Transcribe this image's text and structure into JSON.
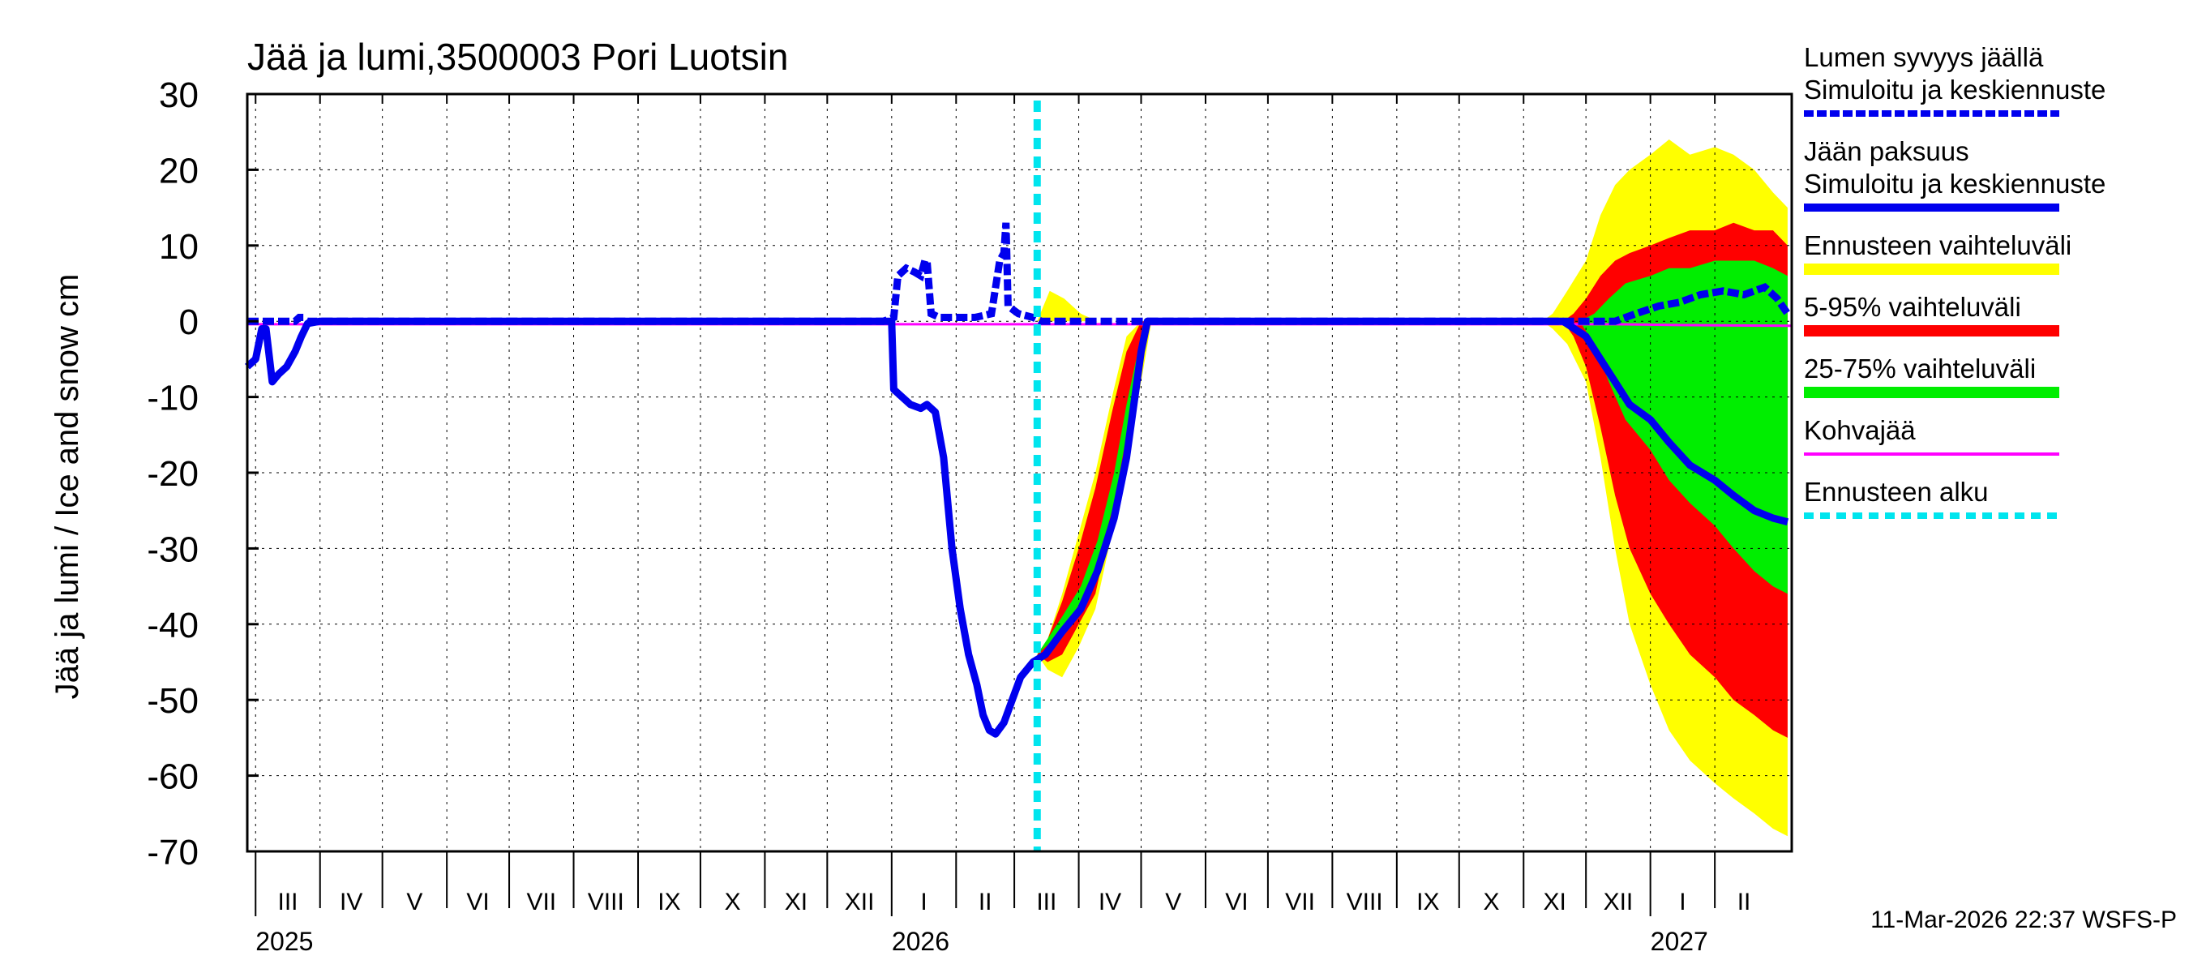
{
  "chart_data": {
    "type": "area",
    "title": "Jää ja lumi,3500003 Pori Luotsin",
    "ylabel": "Jää ja lumi / Ice and snow    cm",
    "xlabel": "",
    "ylim": [
      -70,
      30
    ],
    "yticks": [
      30,
      20,
      10,
      0,
      -10,
      -20,
      -30,
      -40,
      -50,
      -60,
      -70
    ],
    "xlim": [
      "2025-02-25",
      "2027-03-10"
    ],
    "grid": true,
    "legend_position": "right",
    "months": [
      {
        "label": "III",
        "start": "2025-03-01",
        "end": "2025-04-01"
      },
      {
        "label": "IV",
        "start": "2025-04-01",
        "end": "2025-05-01"
      },
      {
        "label": "V",
        "start": "2025-05-01",
        "end": "2025-06-01"
      },
      {
        "label": "VI",
        "start": "2025-06-01",
        "end": "2025-07-01"
      },
      {
        "label": "VII",
        "start": "2025-07-01",
        "end": "2025-08-01"
      },
      {
        "label": "VIII",
        "start": "2025-08-01",
        "end": "2025-09-01"
      },
      {
        "label": "IX",
        "start": "2025-09-01",
        "end": "2025-10-01"
      },
      {
        "label": "X",
        "start": "2025-10-01",
        "end": "2025-11-01"
      },
      {
        "label": "XI",
        "start": "2025-11-01",
        "end": "2025-12-01"
      },
      {
        "label": "XII",
        "start": "2025-12-01",
        "end": "2026-01-01"
      },
      {
        "label": "I",
        "start": "2026-01-01",
        "end": "2026-02-01"
      },
      {
        "label": "II",
        "start": "2026-02-01",
        "end": "2026-03-01"
      },
      {
        "label": "III",
        "start": "2026-03-01",
        "end": "2026-04-01"
      },
      {
        "label": "IV",
        "start": "2026-04-01",
        "end": "2026-05-01"
      },
      {
        "label": "V",
        "start": "2026-05-01",
        "end": "2026-06-01"
      },
      {
        "label": "VI",
        "start": "2026-06-01",
        "end": "2026-07-01"
      },
      {
        "label": "VII",
        "start": "2026-07-01",
        "end": "2026-08-01"
      },
      {
        "label": "VIII",
        "start": "2026-08-01",
        "end": "2026-09-01"
      },
      {
        "label": "IX",
        "start": "2026-09-01",
        "end": "2026-10-01"
      },
      {
        "label": "X",
        "start": "2026-10-01",
        "end": "2026-11-01"
      },
      {
        "label": "XI",
        "start": "2026-11-01",
        "end": "2026-12-01"
      },
      {
        "label": "XII",
        "start": "2026-12-01",
        "end": "2027-01-01"
      },
      {
        "label": "I",
        "start": "2027-01-01",
        "end": "2027-02-01"
      },
      {
        "label": "II",
        "start": "2027-02-01",
        "end": "2027-03-01"
      }
    ],
    "years": [
      {
        "label": "2025",
        "date": "2025-03-01"
      },
      {
        "label": "2026",
        "date": "2026-01-01"
      },
      {
        "label": "2027",
        "date": "2027-01-01"
      }
    ],
    "forecast_start": "2026-03-12",
    "legend": [
      {
        "key": "snow",
        "lines": [
          "Lumen syvyys jäällä",
          "Simuloitu ja keskiennuste"
        ],
        "color": "#0000ee",
        "style": "dashed"
      },
      {
        "key": "ice",
        "lines": [
          "Jään paksuus",
          "Simuloitu ja keskiennuste"
        ],
        "color": "#0000ee",
        "style": "solid"
      },
      {
        "key": "range",
        "lines": [
          "Ennusteen vaihteluväli"
        ],
        "color": "#ffff00",
        "style": "band"
      },
      {
        "key": "p5_95",
        "lines": [
          "5-95% vaihteluväli"
        ],
        "color": "#ff0000",
        "style": "band"
      },
      {
        "key": "p25_75",
        "lines": [
          "25-75% vaihteluväli"
        ],
        "color": "#00ee00",
        "style": "band"
      },
      {
        "key": "slush",
        "lines": [
          "Kohvajää"
        ],
        "color": "#ff00ff",
        "style": "thin"
      },
      {
        "key": "fstart",
        "lines": [
          "Ennusteen alku"
        ],
        "color": "#00e5ee",
        "style": "dotted"
      }
    ],
    "timestamp": "11-Mar-2026 22:37 WSFS-P",
    "series": {
      "ice_thickness": [
        [
          "2025-02-25",
          -6
        ],
        [
          "2025-03-01",
          -5
        ],
        [
          "2025-03-04",
          -1
        ],
        [
          "2025-03-06",
          -1
        ],
        [
          "2025-03-09",
          -8
        ],
        [
          "2025-03-12",
          -7
        ],
        [
          "2025-03-16",
          -6
        ],
        [
          "2025-03-20",
          -4
        ],
        [
          "2025-03-23",
          -2
        ],
        [
          "2025-03-26",
          -0.3
        ],
        [
          "2025-04-01",
          0
        ],
        [
          "2026-01-01",
          0
        ],
        [
          "2026-01-02",
          -9
        ],
        [
          "2026-01-06",
          -10
        ],
        [
          "2026-01-10",
          -11
        ],
        [
          "2026-01-15",
          -11.5
        ],
        [
          "2026-01-18",
          -11
        ],
        [
          "2026-01-22",
          -12
        ],
        [
          "2026-01-26",
          -18
        ],
        [
          "2026-01-30",
          -30
        ],
        [
          "2026-02-03",
          -38
        ],
        [
          "2026-02-07",
          -44
        ],
        [
          "2026-02-11",
          -48
        ],
        [
          "2026-02-14",
          -52
        ],
        [
          "2026-02-17",
          -54
        ],
        [
          "2026-02-20",
          -54.5
        ],
        [
          "2026-02-24",
          -53
        ],
        [
          "2026-02-28",
          -50
        ],
        [
          "2026-03-04",
          -47
        ],
        [
          "2026-03-10",
          -45
        ],
        [
          "2026-03-16",
          -44
        ],
        [
          "2026-03-24",
          -41
        ],
        [
          "2026-04-02",
          -38
        ],
        [
          "2026-04-10",
          -33
        ],
        [
          "2026-04-18",
          -26
        ],
        [
          "2026-04-24",
          -18
        ],
        [
          "2026-04-28",
          -10
        ],
        [
          "2026-05-01",
          -4
        ],
        [
          "2026-05-04",
          0
        ],
        [
          "2026-11-10",
          0
        ],
        [
          "2026-11-20",
          0
        ],
        [
          "2026-12-01",
          -2
        ],
        [
          "2026-12-08",
          -5
        ],
        [
          "2026-12-15",
          -8
        ],
        [
          "2026-12-22",
          -11
        ],
        [
          "2027-01-01",
          -13
        ],
        [
          "2027-01-10",
          -16
        ],
        [
          "2027-01-20",
          -19
        ],
        [
          "2027-02-01",
          -21
        ],
        [
          "2027-02-10",
          -23
        ],
        [
          "2027-02-20",
          -25
        ],
        [
          "2027-03-01",
          -26
        ],
        [
          "2027-03-08",
          -26.5
        ]
      ],
      "snow_depth": [
        [
          "2025-02-25",
          0
        ],
        [
          "2025-03-20",
          0
        ],
        [
          "2025-03-22",
          0.5
        ],
        [
          "2025-03-24",
          0.5
        ],
        [
          "2025-03-26",
          0
        ],
        [
          "2025-12-28",
          0
        ],
        [
          "2026-01-02",
          0.5
        ],
        [
          "2026-01-04",
          6
        ],
        [
          "2026-01-08",
          7
        ],
        [
          "2026-01-12",
          6.5
        ],
        [
          "2026-01-15",
          6
        ],
        [
          "2026-01-17",
          8
        ],
        [
          "2026-01-18",
          8
        ],
        [
          "2026-01-20",
          1
        ],
        [
          "2026-01-24",
          0.5
        ],
        [
          "2026-02-10",
          0.5
        ],
        [
          "2026-02-18",
          1
        ],
        [
          "2026-02-22",
          8
        ],
        [
          "2026-02-24",
          9
        ],
        [
          "2026-02-25",
          13
        ],
        [
          "2026-02-26",
          2
        ],
        [
          "2026-03-03",
          1
        ],
        [
          "2026-03-10",
          0.5
        ],
        [
          "2026-03-14",
          0
        ],
        [
          "2026-12-15",
          0
        ],
        [
          "2026-12-25",
          1
        ],
        [
          "2027-01-05",
          2
        ],
        [
          "2027-01-15",
          2.5
        ],
        [
          "2027-01-25",
          3.5
        ],
        [
          "2027-02-05",
          4
        ],
        [
          "2027-02-15",
          3.5
        ],
        [
          "2027-02-25",
          4.5
        ],
        [
          "2027-03-03",
          3
        ],
        [
          "2027-03-08",
          1
        ]
      ],
      "slush_ice": [
        [
          "2025-02-25",
          -0.4
        ],
        [
          "2026-03-12",
          -0.4
        ],
        [
          "2026-12-15",
          -0.4
        ],
        [
          "2027-01-15",
          -0.5
        ],
        [
          "2027-03-10",
          -0.6
        ]
      ],
      "band_spring_range": [
        [
          "2026-03-12",
          -44,
          -44
        ],
        [
          "2026-03-17",
          -46,
          -42
        ],
        [
          "2026-03-24",
          -47,
          -36
        ],
        [
          "2026-04-01",
          -43,
          -28
        ],
        [
          "2026-04-09",
          -38,
          -20
        ],
        [
          "2026-04-17",
          -28,
          -10
        ],
        [
          "2026-04-24",
          -18,
          -2
        ],
        [
          "2026-05-01",
          -8,
          0
        ],
        [
          "2026-05-06",
          0,
          0
        ]
      ],
      "band_spring_95": [
        [
          "2026-03-12",
          -44,
          -44
        ],
        [
          "2026-03-17",
          -45,
          -42
        ],
        [
          "2026-03-24",
          -44,
          -37
        ],
        [
          "2026-04-01",
          -40,
          -30
        ],
        [
          "2026-04-09",
          -36,
          -22
        ],
        [
          "2026-04-17",
          -26,
          -12
        ],
        [
          "2026-04-24",
          -16,
          -4
        ],
        [
          "2026-05-01",
          -6,
          0
        ],
        [
          "2026-05-05",
          0,
          0
        ]
      ],
      "band_spring_75": [
        [
          "2026-03-12",
          -44,
          -44
        ],
        [
          "2026-03-24",
          -41,
          -39
        ],
        [
          "2026-04-02",
          -37,
          -35
        ],
        [
          "2026-04-10",
          -32,
          -29
        ],
        [
          "2026-04-18",
          -24,
          -20
        ],
        [
          "2026-04-24",
          -15,
          -11
        ],
        [
          "2026-05-01",
          -5,
          -2
        ],
        [
          "2026-05-04",
          0,
          0
        ]
      ],
      "band_spring_snow": [
        [
          "2026-03-12",
          0,
          0
        ],
        [
          "2026-03-18",
          0,
          4
        ],
        [
          "2026-03-25",
          0,
          3
        ],
        [
          "2026-04-02",
          0,
          1
        ],
        [
          "2026-04-10",
          0,
          0
        ]
      ],
      "band_winter_range": [
        [
          "2026-11-10",
          0,
          0
        ],
        [
          "2026-11-15",
          -1,
          1
        ],
        [
          "2026-11-22",
          -3,
          4
        ],
        [
          "2026-12-01",
          -8,
          8
        ],
        [
          "2026-12-08",
          -18,
          14
        ],
        [
          "2026-12-15",
          -30,
          18
        ],
        [
          "2026-12-22",
          -40,
          20
        ],
        [
          "2027-01-01",
          -48,
          22
        ],
        [
          "2027-01-10",
          -54,
          24
        ],
        [
          "2027-01-20",
          -58,
          22
        ],
        [
          "2027-02-01",
          -61,
          23
        ],
        [
          "2027-02-10",
          -63,
          22
        ],
        [
          "2027-02-20",
          -65,
          20
        ],
        [
          "2027-03-01",
          -67,
          17
        ],
        [
          "2027-03-08",
          -68,
          15
        ]
      ],
      "band_winter_95": [
        [
          "2026-11-20",
          0,
          0
        ],
        [
          "2026-11-25",
          -2,
          1
        ],
        [
          "2026-12-01",
          -6,
          3
        ],
        [
          "2026-12-08",
          -14,
          6
        ],
        [
          "2026-12-15",
          -23,
          8
        ],
        [
          "2026-12-22",
          -30,
          9
        ],
        [
          "2027-01-01",
          -36,
          10
        ],
        [
          "2027-01-10",
          -40,
          11
        ],
        [
          "2027-01-20",
          -44,
          12
        ],
        [
          "2027-02-01",
          -47,
          12
        ],
        [
          "2027-02-10",
          -50,
          13
        ],
        [
          "2027-02-20",
          -52,
          12
        ],
        [
          "2027-03-01",
          -54,
          12
        ],
        [
          "2027-03-08",
          -55,
          10
        ]
      ],
      "band_winter_75": [
        [
          "2026-11-28",
          0,
          0
        ],
        [
          "2026-12-05",
          -3,
          1
        ],
        [
          "2026-12-12",
          -8,
          3
        ],
        [
          "2026-12-20",
          -13,
          5
        ],
        [
          "2027-01-01",
          -17,
          6
        ],
        [
          "2027-01-10",
          -21,
          7
        ],
        [
          "2027-01-20",
          -24,
          7
        ],
        [
          "2027-02-01",
          -27,
          8
        ],
        [
          "2027-02-10",
          -30,
          8
        ],
        [
          "2027-02-20",
          -33,
          8
        ],
        [
          "2027-03-01",
          -35,
          7
        ],
        [
          "2027-03-08",
          -36,
          6
        ]
      ]
    }
  }
}
